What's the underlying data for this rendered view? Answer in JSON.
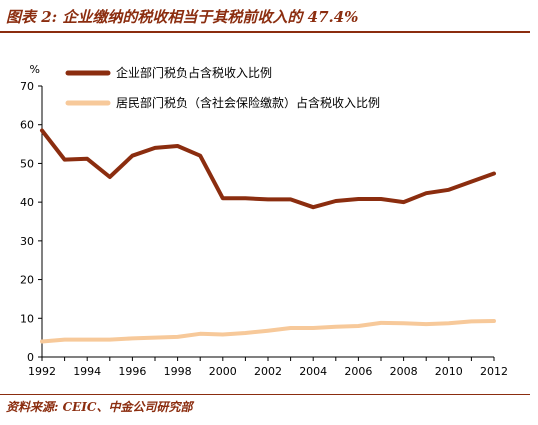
{
  "title": "图表 2: 企业缴纳的税收相当于其税前收入的 47.4%",
  "source": "资料来源: CEIC、中金公司研究部",
  "chart_data": {
    "type": "line",
    "ylabel": "%",
    "ylim": [
      0,
      70
    ],
    "yticks": [
      0,
      10,
      20,
      30,
      40,
      50,
      60,
      70
    ],
    "xlim": [
      1992,
      2012
    ],
    "xticks": [
      1992,
      1994,
      1996,
      1998,
      2000,
      2002,
      2004,
      2006,
      2008,
      2010,
      2012
    ],
    "grid": false,
    "legend_position": "top-left",
    "x": [
      1992,
      1993,
      1994,
      1995,
      1996,
      1997,
      1998,
      1999,
      2000,
      2001,
      2002,
      2003,
      2004,
      2005,
      2006,
      2007,
      2008,
      2009,
      2010,
      2011,
      2012
    ],
    "series": [
      {
        "name": "企业部门税负占含税收入比例",
        "color": "#8b2d0f",
        "values": [
          58.5,
          51.0,
          51.2,
          46.5,
          52.0,
          54.0,
          54.5,
          52.0,
          41.0,
          41.0,
          40.7,
          40.7,
          38.7,
          40.3,
          40.8,
          40.8,
          40.0,
          42.3,
          43.2,
          45.3,
          47.4
        ]
      },
      {
        "name": "居民部门税负（含社会保险缴款）占含税收入比例",
        "color": "#f7c99a",
        "values": [
          4.0,
          4.5,
          4.5,
          4.5,
          4.8,
          5.0,
          5.2,
          6.0,
          5.8,
          6.2,
          6.8,
          7.5,
          7.5,
          7.8,
          8.0,
          8.8,
          8.7,
          8.5,
          8.7,
          9.2,
          9.3
        ]
      }
    ]
  }
}
